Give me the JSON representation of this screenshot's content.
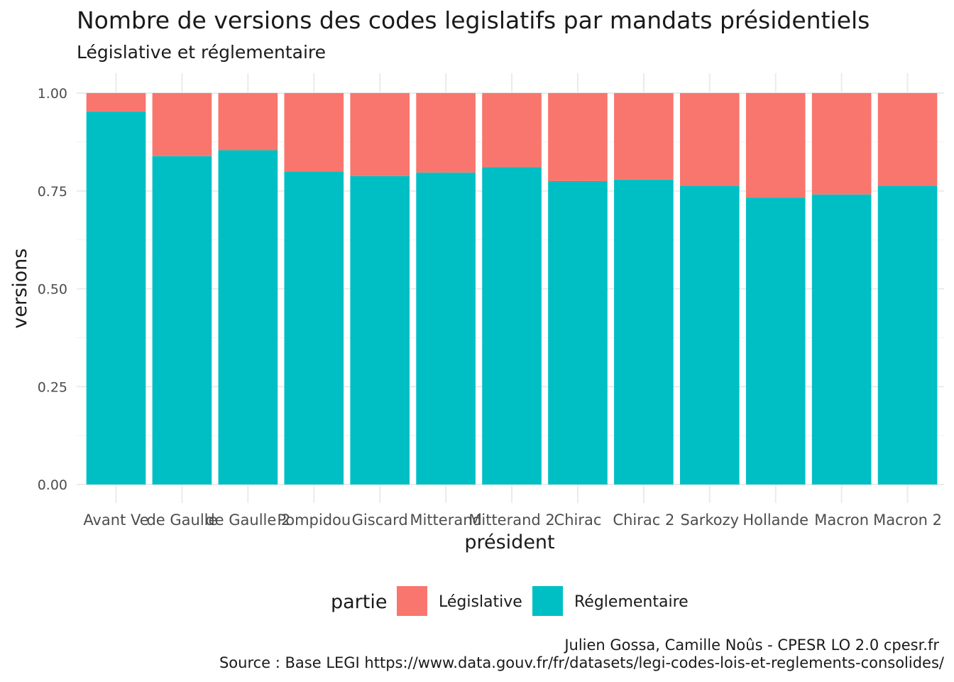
{
  "chart_data": {
    "type": "bar",
    "stacked": true,
    "title": "Nombre de versions des codes legislatifs par mandats présidentiels",
    "subtitle": "Législative et réglementaire",
    "xlabel": "président",
    "ylabel": "versions",
    "ylim": [
      0,
      1
    ],
    "yticks": [
      "0.00",
      "0.25",
      "0.50",
      "0.75",
      "1.00"
    ],
    "grid": true,
    "legend_position": "bottom",
    "legend_title": "partie",
    "categories": [
      "Avant Ve",
      "de Gaulle",
      "de Gaulle 2",
      "Pompidou",
      "Giscard",
      "Mitterand",
      "Mitterand 2",
      "Chirac",
      "Chirac 2",
      "Sarkozy",
      "Hollande",
      "Macron",
      "Macron 2"
    ],
    "series": [
      {
        "name": "Réglementaire",
        "color": "#00BFC4",
        "values": [
          0.953,
          0.839,
          0.854,
          0.8,
          0.788,
          0.797,
          0.811,
          0.775,
          0.779,
          0.763,
          0.733,
          0.741,
          0.763
        ]
      },
      {
        "name": "Législative",
        "color": "#F8766D",
        "values": [
          0.047,
          0.161,
          0.146,
          0.2,
          0.212,
          0.203,
          0.189,
          0.225,
          0.221,
          0.237,
          0.267,
          0.259,
          0.237
        ]
      }
    ],
    "caption_line1": "Julien Gossa, Camille Noûs - CPESR LO 2.0 cpesr.fr",
    "caption_line2": "Source : Base LEGI https://www.data.gouv.fr/fr/datasets/legi-codes-lois-et-reglements-consolides/"
  }
}
